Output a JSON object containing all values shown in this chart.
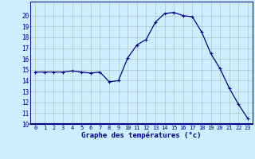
{
  "x": [
    0,
    1,
    2,
    3,
    4,
    5,
    6,
    7,
    8,
    9,
    10,
    11,
    12,
    13,
    14,
    15,
    16,
    17,
    18,
    19,
    20,
    21,
    22,
    23
  ],
  "y": [
    14.8,
    14.8,
    14.8,
    14.8,
    14.9,
    14.8,
    14.7,
    14.8,
    13.9,
    14.0,
    16.1,
    17.3,
    17.8,
    19.4,
    20.2,
    20.3,
    20.0,
    19.9,
    18.5,
    16.5,
    15.1,
    13.3,
    11.8,
    10.5
  ],
  "xlabel": "Graphe des températures (°c)",
  "ylim": [
    10,
    21
  ],
  "xlim": [
    -0.5,
    23.5
  ],
  "yticks": [
    10,
    11,
    12,
    13,
    14,
    15,
    16,
    17,
    18,
    19,
    20
  ],
  "xticks": [
    0,
    1,
    2,
    3,
    4,
    5,
    6,
    7,
    8,
    9,
    10,
    11,
    12,
    13,
    14,
    15,
    16,
    17,
    18,
    19,
    20,
    21,
    22,
    23
  ],
  "line_color": "#00008b",
  "marker": "+",
  "markersize": 3,
  "linewidth": 0.9,
  "bg_color": "#cceeff",
  "grid_color": "#b0c4c4",
  "axis_color": "#00008b",
  "xlabel_color": "#00008b",
  "tick_color": "#00008b",
  "xlabel_fontsize": 6.5,
  "xtick_fontsize": 5.0,
  "ytick_fontsize": 5.5
}
